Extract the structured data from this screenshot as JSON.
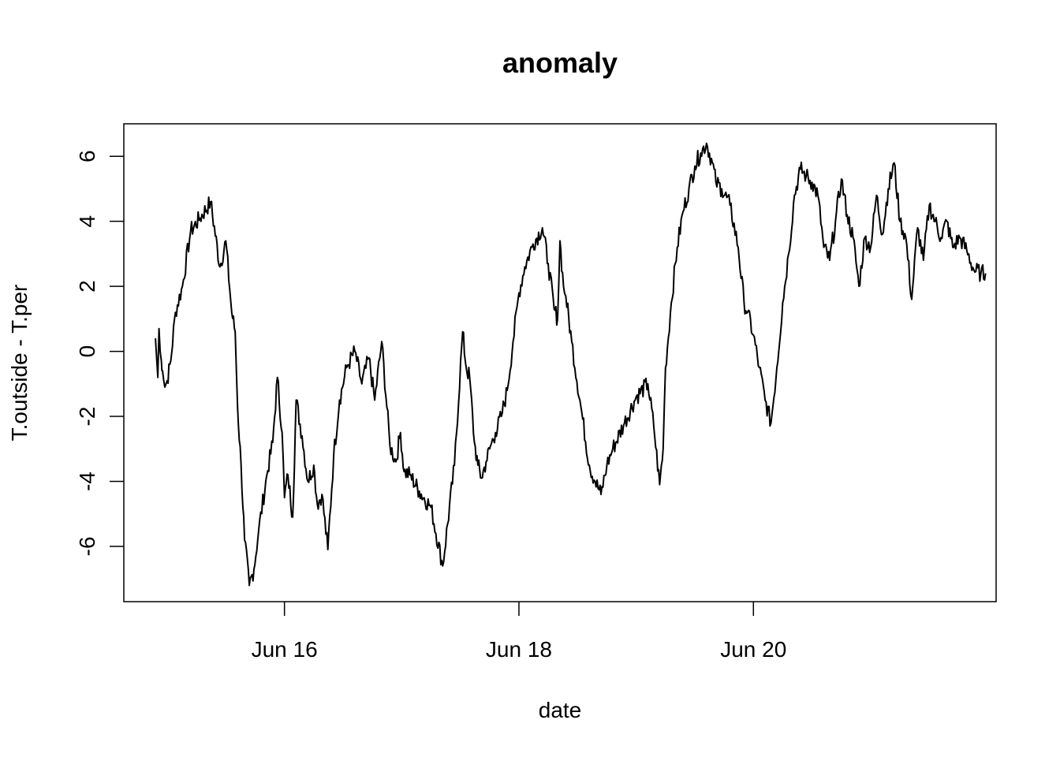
{
  "chart_data": {
    "type": "line",
    "title": "anomaly",
    "xlabel": "date",
    "ylabel": "T.outside - T.per",
    "x_ticks": [
      {
        "value": "Jun 16",
        "day": 16
      },
      {
        "value": "Jun 18",
        "day": 18
      },
      {
        "value": "Jun 20",
        "day": 20
      }
    ],
    "y_ticks": [
      -6,
      -4,
      -2,
      0,
      2,
      4,
      6
    ],
    "xlim_days": [
      14.63,
      22.07
    ],
    "ylim": [
      -7.7,
      7.0
    ],
    "grid": false,
    "legend": "none",
    "line_color": "#000000",
    "series": [
      {
        "x_days": [
          14.9,
          14.92,
          14.93,
          14.95,
          14.96,
          14.98,
          15.0,
          15.03,
          15.07,
          15.13,
          15.2,
          15.28,
          15.37,
          15.45,
          15.5,
          15.55,
          15.58,
          15.6,
          15.63,
          15.66,
          15.7,
          15.74,
          15.78,
          15.85,
          15.9,
          15.94,
          15.98,
          16.0,
          16.03,
          16.07,
          16.1,
          16.15,
          16.2,
          16.25,
          16.28,
          16.32,
          16.37,
          16.42,
          16.47,
          16.53,
          16.6,
          16.66,
          16.72,
          16.77,
          16.83,
          16.9,
          16.95,
          16.99,
          17.02,
          17.07,
          17.15,
          17.25,
          17.35,
          17.45,
          17.52,
          17.55,
          17.58,
          17.62,
          17.65,
          17.68,
          17.72,
          17.75,
          17.8,
          17.85,
          17.9,
          17.95,
          18.0,
          18.05,
          18.12,
          18.2,
          18.25,
          18.3,
          18.33,
          18.35,
          18.38,
          18.4,
          18.45,
          18.52,
          18.6,
          18.65,
          18.7,
          18.75,
          18.8,
          18.9,
          19.0,
          19.1,
          19.15,
          19.2,
          19.23,
          19.25,
          19.3,
          19.35,
          19.4,
          19.45,
          19.5,
          19.55,
          19.6,
          19.65,
          19.68,
          19.73,
          19.8,
          19.87,
          19.92,
          19.95,
          20.0,
          20.05,
          20.1,
          20.15,
          20.2,
          20.25,
          20.3,
          20.35,
          20.4,
          20.45,
          20.5,
          20.55,
          20.6,
          20.65,
          20.7,
          20.75,
          20.8,
          20.85,
          20.9,
          20.95,
          21.0,
          21.05,
          21.1,
          21.15,
          21.2,
          21.25,
          21.3,
          21.35,
          21.4,
          21.45,
          21.5,
          21.55,
          21.6,
          21.65,
          21.7,
          21.76,
          21.82,
          21.88,
          21.94,
          21.98
        ],
        "y": [
          0.4,
          -0.8,
          0.7,
          -0.3,
          -0.6,
          -1.1,
          -0.9,
          -0.3,
          1.2,
          2.0,
          3.7,
          4.1,
          4.6,
          2.6,
          3.4,
          1.2,
          0.6,
          -1.7,
          -3.5,
          -5.8,
          -7.2,
          -6.7,
          -5.5,
          -3.8,
          -2.8,
          -0.8,
          -2.5,
          -4.5,
          -3.8,
          -5.1,
          -1.5,
          -2.6,
          -4.0,
          -3.5,
          -4.7,
          -4.4,
          -6.1,
          -3.2,
          -1.5,
          -0.5,
          0.0,
          -1.0,
          -0.2,
          -1.5,
          0.3,
          -2.9,
          -3.4,
          -2.5,
          -3.7,
          -3.8,
          -4.3,
          -4.8,
          -6.6,
          -3.5,
          0.6,
          -0.5,
          -0.8,
          -2.8,
          -3.5,
          -3.9,
          -3.4,
          -3.0,
          -2.5,
          -2.0,
          -1.2,
          0.3,
          1.8,
          2.6,
          3.3,
          3.8,
          2.7,
          1.3,
          1.0,
          3.4,
          2.0,
          1.7,
          0.3,
          -1.5,
          -3.5,
          -4.0,
          -4.4,
          -3.5,
          -3.0,
          -2.2,
          -1.4,
          -1.0,
          -2.3,
          -4.1,
          -3.0,
          -0.5,
          1.5,
          3.2,
          4.3,
          5.0,
          5.7,
          6.1,
          6.4,
          5.8,
          5.2,
          5.0,
          4.5,
          3.2,
          1.5,
          1.2,
          0.5,
          -0.5,
          -1.5,
          -2.2,
          -0.5,
          1.5,
          3.0,
          4.8,
          5.6,
          5.4,
          5.2,
          4.8,
          3.2,
          2.8,
          4.0,
          5.3,
          4.2,
          3.5,
          2.0,
          3.5,
          3.2,
          4.8,
          3.6,
          5.0,
          5.8,
          4.0,
          3.5,
          1.6,
          3.8,
          2.8,
          4.5,
          4.0,
          3.5,
          4.0,
          3.2,
          3.5,
          3.1,
          2.5,
          2.4,
          2.4
        ],
        "note": "approximate trace read from plot"
      }
    ]
  }
}
